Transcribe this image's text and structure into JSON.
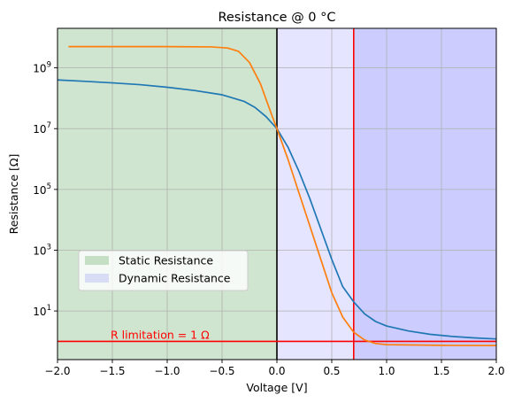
{
  "chart_data": {
    "type": "line",
    "title": "Resistance @ 0 °C",
    "xlabel": "Voltage [V]",
    "ylabel": "Resistance [Ω]",
    "xlim": [
      -2.0,
      2.0
    ],
    "ylim_log10": [
      -0.6,
      10.3
    ],
    "yscale": "log",
    "grid": true,
    "legend_position": "center-left",
    "x_ticks": [
      {
        "value": -2.0,
        "label": "−2.0"
      },
      {
        "value": -1.5,
        "label": "−1.5"
      },
      {
        "value": -1.0,
        "label": "−1.0"
      },
      {
        "value": -0.5,
        "label": "−0.5"
      },
      {
        "value": 0.0,
        "label": "0.0"
      },
      {
        "value": 0.5,
        "label": "0.5"
      },
      {
        "value": 1.0,
        "label": "1.0"
      },
      {
        "value": 1.5,
        "label": "1.5"
      },
      {
        "value": 2.0,
        "label": "2.0"
      }
    ],
    "y_ticks": [
      {
        "exp": 1,
        "base": "10",
        "sup": "1"
      },
      {
        "exp": 3,
        "base": "10",
        "sup": "3"
      },
      {
        "exp": 5,
        "base": "10",
        "sup": "5"
      },
      {
        "exp": 7,
        "base": "10",
        "sup": "7"
      },
      {
        "exp": 9,
        "base": "10",
        "sup": "9"
      }
    ],
    "regions": [
      {
        "name": "Static Resistance",
        "x_from": -2.0,
        "x_to": 0.0,
        "color": "#cfe5cf"
      },
      {
        "name": "Dynamic Resistance",
        "x_from": 0.0,
        "x_to": 0.7,
        "color": "#e5e5ff"
      },
      {
        "name": "",
        "x_from": 0.7,
        "x_to": 2.0,
        "color": "#ccccff"
      }
    ],
    "legend": [
      {
        "label": "Static Resistance",
        "color": "#c4dfc4"
      },
      {
        "label": "Dynamic Resistance",
        "color": "#d8dcf5"
      }
    ],
    "reference_lines": [
      {
        "orientation": "vertical",
        "x": 0.0,
        "color": "#000000"
      },
      {
        "orientation": "vertical",
        "x": 0.7,
        "color": "#ff0000"
      },
      {
        "orientation": "horizontal",
        "y": 1,
        "color": "#ff0000"
      }
    ],
    "annotation": {
      "text": "R limitation = 1 Ω",
      "x": -1.5,
      "y": 1,
      "color": "#ff0000"
    },
    "series": [
      {
        "color": "#1f77b4",
        "points": [
          {
            "x": -2.0,
            "y": 400000000.0
          },
          {
            "x": -1.75,
            "y": 360000000.0
          },
          {
            "x": -1.5,
            "y": 320000000.0
          },
          {
            "x": -1.25,
            "y": 280000000.0
          },
          {
            "x": -1.0,
            "y": 230000000.0
          },
          {
            "x": -0.75,
            "y": 180000000.0
          },
          {
            "x": -0.5,
            "y": 130000000.0
          },
          {
            "x": -0.3,
            "y": 79000000.0
          },
          {
            "x": -0.2,
            "y": 50000000.0
          },
          {
            "x": -0.1,
            "y": 25000000.0
          },
          {
            "x": 0.0,
            "y": 10000000.0
          },
          {
            "x": 0.1,
            "y": 2500000.0
          },
          {
            "x": 0.2,
            "y": 400000.0
          },
          {
            "x": 0.3,
            "y": 50000.0
          },
          {
            "x": 0.4,
            "y": 5000.0
          },
          {
            "x": 0.5,
            "y": 500.0
          },
          {
            "x": 0.6,
            "y": 63
          },
          {
            "x": 0.7,
            "y": 20
          },
          {
            "x": 0.8,
            "y": 8
          },
          {
            "x": 0.9,
            "y": 4.5
          },
          {
            "x": 1.0,
            "y": 3.2
          },
          {
            "x": 1.2,
            "y": 2.2
          },
          {
            "x": 1.4,
            "y": 1.7
          },
          {
            "x": 1.6,
            "y": 1.45
          },
          {
            "x": 1.8,
            "y": 1.3
          },
          {
            "x": 2.0,
            "y": 1.2
          }
        ]
      },
      {
        "color": "#ff7f0e",
        "points": [
          {
            "x": -1.9,
            "y": 5000000000.0
          },
          {
            "x": -1.5,
            "y": 5000000000.0
          },
          {
            "x": -1.0,
            "y": 5000000000.0
          },
          {
            "x": -0.6,
            "y": 4900000000.0
          },
          {
            "x": -0.45,
            "y": 4500000000.0
          },
          {
            "x": -0.35,
            "y": 3500000000.0
          },
          {
            "x": -0.25,
            "y": 1500000000.0
          },
          {
            "x": -0.15,
            "y": 300000000.0
          },
          {
            "x": -0.05,
            "y": 30000000.0
          },
          {
            "x": 0.0,
            "y": 10000000.0
          },
          {
            "x": 0.1,
            "y": 1000000.0
          },
          {
            "x": 0.2,
            "y": 79000.0
          },
          {
            "x": 0.3,
            "y": 6300.0
          },
          {
            "x": 0.4,
            "y": 500.0
          },
          {
            "x": 0.5,
            "y": 40
          },
          {
            "x": 0.6,
            "y": 6.3
          },
          {
            "x": 0.7,
            "y": 2.0
          },
          {
            "x": 0.8,
            "y": 1.1
          },
          {
            "x": 0.9,
            "y": 0.85
          },
          {
            "x": 1.0,
            "y": 0.78
          },
          {
            "x": 1.5,
            "y": 0.74
          },
          {
            "x": 2.0,
            "y": 0.73
          }
        ]
      }
    ]
  }
}
